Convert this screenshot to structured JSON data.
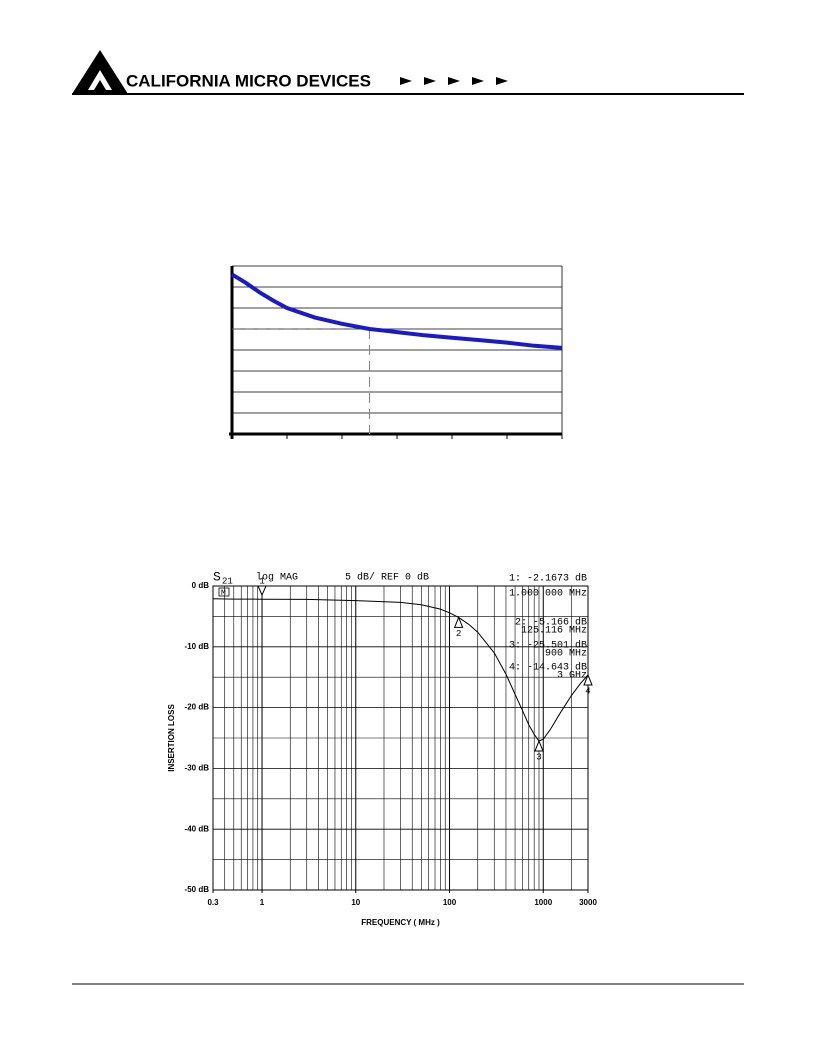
{
  "header": {
    "company": "CALIFORNIA MICRO DEVICES"
  },
  "chart_data": [
    {
      "type": "line",
      "color": "#1a1acc",
      "grid": true,
      "x": [
        0,
        0.25,
        0.5,
        0.75,
        1,
        1.5,
        2,
        2.5,
        3,
        3.5,
        4,
        4.5,
        5,
        5.5,
        6
      ],
      "values": [
        7.6,
        7.2,
        6.75,
        6.35,
        6.0,
        5.55,
        5.25,
        5.0,
        4.85,
        4.7,
        4.58,
        4.47,
        4.35,
        4.2,
        4.1
      ],
      "xlim": [
        0,
        6
      ],
      "ylim": [
        0,
        8
      ],
      "xticks": [
        0,
        1,
        2,
        3,
        4,
        5,
        6
      ],
      "yticks": [
        0,
        1,
        2,
        3,
        4,
        5,
        6,
        7,
        8
      ],
      "guide_x": 2.5,
      "guide_y": 5
    },
    {
      "type": "line",
      "log_x": true,
      "color": "#000000",
      "grid": true,
      "annotations": [
        "S",
        "21",
        "log MAG",
        "5 dB/  REF 0 dB",
        "M"
      ],
      "xlabel": "FREQUENCY ( MHz )",
      "ylabel": "INSERTION LOSS",
      "x": [
        0.3,
        0.5,
        1,
        3,
        10,
        30,
        50,
        80,
        100,
        125.116,
        160,
        200,
        300,
        400,
        500,
        600,
        700,
        800,
        900,
        1000,
        1200,
        1500,
        2000,
        2500,
        3000
      ],
      "values": [
        -2.1,
        -2.15,
        -2.1673,
        -2.2,
        -2.4,
        -2.7,
        -3.1,
        -3.8,
        -4.4,
        -5.166,
        -6.3,
        -7.6,
        -11,
        -14.5,
        -17.8,
        -20.5,
        -22.8,
        -24.4,
        -25.501,
        -25.2,
        -23.5,
        -21,
        -18,
        -16,
        -14.643
      ],
      "xlim": [
        0.3,
        3000
      ],
      "ylim": [
        -50,
        0
      ],
      "xticks": [
        0.3,
        1,
        10,
        100,
        1000,
        3000
      ],
      "yticks": [
        {
          "value": 0,
          "label": "0 dB"
        },
        {
          "value": -10,
          "label": "-10 dB"
        },
        {
          "value": -20,
          "label": "-20 dB"
        },
        {
          "value": -30,
          "label": "-30 dB"
        },
        {
          "value": -40,
          "label": "-40 dB"
        },
        {
          "value": -50,
          "label": "-50 dB"
        }
      ],
      "yminor": [
        -5,
        -15,
        -25,
        -35,
        -45
      ],
      "markers": [
        {
          "label": "1",
          "x": 1,
          "y": -2.1673,
          "readout": [
            "1: -2.1673 dB",
            "1.000 000 MHz"
          ]
        },
        {
          "label": "2",
          "x": 125.116,
          "y": -5.166,
          "readout": [
            "2: -5.166 dB",
            "125.116 MHz"
          ]
        },
        {
          "label": "3",
          "x": 900,
          "y": -25.501,
          "readout": [
            "3: -25.501 dB",
            "900 MHz"
          ]
        },
        {
          "label": "4",
          "x": 3000,
          "y": -14.643,
          "readout": [
            "4: -14.643 dB",
            "3 GHz"
          ]
        }
      ]
    }
  ]
}
